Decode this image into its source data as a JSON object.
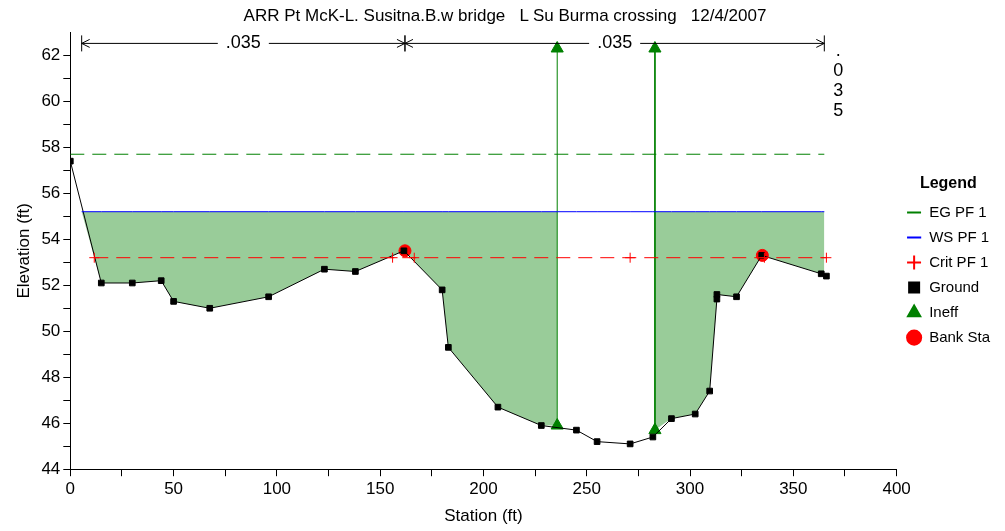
{
  "chart_data": {
    "type": "line",
    "title": "ARR Pt McK-L. Susitna.B.w bridge   L Su Burma crossing   12/4/2007",
    "xlabel": "Station (ft)",
    "ylabel": "Elevation (ft)",
    "legend_title": "Legend",
    "legend": "right",
    "grid": false,
    "xlim": [
      0,
      400
    ],
    "xticks": [
      0,
      {
        "value": 25,
        "label": null
      },
      50,
      {
        "value": 75,
        "label": null
      },
      100,
      {
        "value": 125,
        "label": null
      },
      150,
      {
        "value": 175,
        "label": null
      },
      200,
      {
        "value": 225,
        "label": null
      },
      250,
      {
        "value": 275,
        "label": null
      },
      300,
      {
        "value": 325,
        "label": null
      },
      350,
      {
        "value": 375,
        "label": null
      },
      400
    ],
    "ylim": [
      44,
      63
    ],
    "yticks": [
      44,
      {
        "value": 45,
        "label": null
      },
      46,
      {
        "value": 47,
        "label": null
      },
      48,
      {
        "value": 49,
        "label": null
      },
      50,
      {
        "value": 51,
        "label": null
      },
      52,
      {
        "value": 53,
        "label": null
      },
      54,
      {
        "value": 55,
        "label": null
      },
      56,
      {
        "value": 57,
        "label": null
      },
      58,
      {
        "value": 59,
        "label": null
      },
      60,
      {
        "value": 61,
        "label": null
      },
      62
    ],
    "annotations": [
      ".035",
      ".035",
      ".035"
    ],
    "series": [
      {
        "name": "EG PF 1",
        "type": "line",
        "color": "#008000",
        "line_style": "dashed",
        "marker": "none",
        "x": [
          0,
          365
        ],
        "values": [
          57.7,
          57.7
        ]
      },
      {
        "name": "WS PF 1",
        "type": "line",
        "color": "#0000ff",
        "line_style": "solid",
        "marker": "none",
        "x": [
          5.5,
          15,
          30,
          44,
          50,
          67.5,
          96,
          123,
          138,
          161.5,
          180,
          183,
          207,
          228,
          235.7,
          245,
          255,
          271,
          282,
          283,
          291,
          302.5,
          309.5,
          313,
          313,
          322.5,
          334.7,
          363.5,
          365
        ],
        "values": [
          55.2,
          55.2,
          55.2,
          55.2,
          55.2,
          55.2,
          55.2,
          55.2,
          55.2,
          55.2,
          55.2,
          55.2,
          55.2,
          55.2,
          55.2,
          55.2,
          55.2,
          55.2,
          55.2,
          55.2,
          55.2,
          55.2,
          55.2,
          55.2,
          55.2,
          55.2,
          55.2,
          55.2,
          55.2
        ],
        "lower": [
          55.2,
          52.1,
          52.1,
          52.2,
          51.3,
          51.0,
          51.5,
          52.7,
          52.6,
          53.5,
          51.8,
          49.3,
          46.7,
          45.9,
          45.9,
          null,
          null,
          null,
          null,
          45.7,
          46.2,
          46.4,
          47.4,
          51.4,
          51.6,
          51.5,
          53.3,
          52.5,
          52.4
        ],
        "upper": [
          55.2,
          55.2,
          55.2,
          55.2,
          55.2,
          55.2,
          55.2,
          55.2,
          55.2,
          55.2,
          55.2,
          55.2,
          55.2,
          55.2,
          55.2,
          null,
          null,
          null,
          null,
          55.2,
          55.2,
          55.2,
          55.2,
          55.2,
          55.2,
          55.2,
          55.2,
          55.2,
          55.2
        ]
      },
      {
        "name": "Crit PF 1",
        "type": "line",
        "color": "#ff0000",
        "line_style": "dashed",
        "marker": "cross",
        "x": [
          11.6,
          156,
          166.5,
          271,
          336,
          366
        ],
        "values": [
          53.2,
          53.2,
          53.2,
          53.2,
          53.2,
          53.2
        ]
      },
      {
        "name": "Ground",
        "type": "line",
        "color": "#000000",
        "line_style": "solid",
        "marker": "square",
        "x": [
          0,
          15,
          30,
          44,
          50,
          67.5,
          96,
          123,
          138,
          161.5,
          180,
          183,
          207,
          228,
          245,
          255,
          271,
          282,
          291,
          302.5,
          309.5,
          313,
          313,
          322.5,
          334.7,
          363.5,
          366
        ],
        "values": [
          57.4,
          52.1,
          52.1,
          52.2,
          51.3,
          51.0,
          51.5,
          52.7,
          52.6,
          53.5,
          51.8,
          49.3,
          46.7,
          45.9,
          45.7,
          45.2,
          45.1,
          45.4,
          46.2,
          46.4,
          47.4,
          51.4,
          51.6,
          51.5,
          53.3,
          52.5,
          52.4
        ]
      },
      {
        "name": "Ineff",
        "type": "line",
        "color": "#008000",
        "line_style": "solid",
        "marker": "triangle",
        "x": [
          235.7,
          235.7,
          259,
          283,
          283
        ],
        "values": [
          45.9,
          62.3,
          null,
          62.3,
          45.7
        ]
      },
      {
        "name": "Bank Sta",
        "type": "scatter",
        "color": "#ff0000",
        "marker": "circle",
        "x": [
          162,
          335
        ],
        "values": [
          53.5,
          53.3
        ]
      }
    ]
  }
}
